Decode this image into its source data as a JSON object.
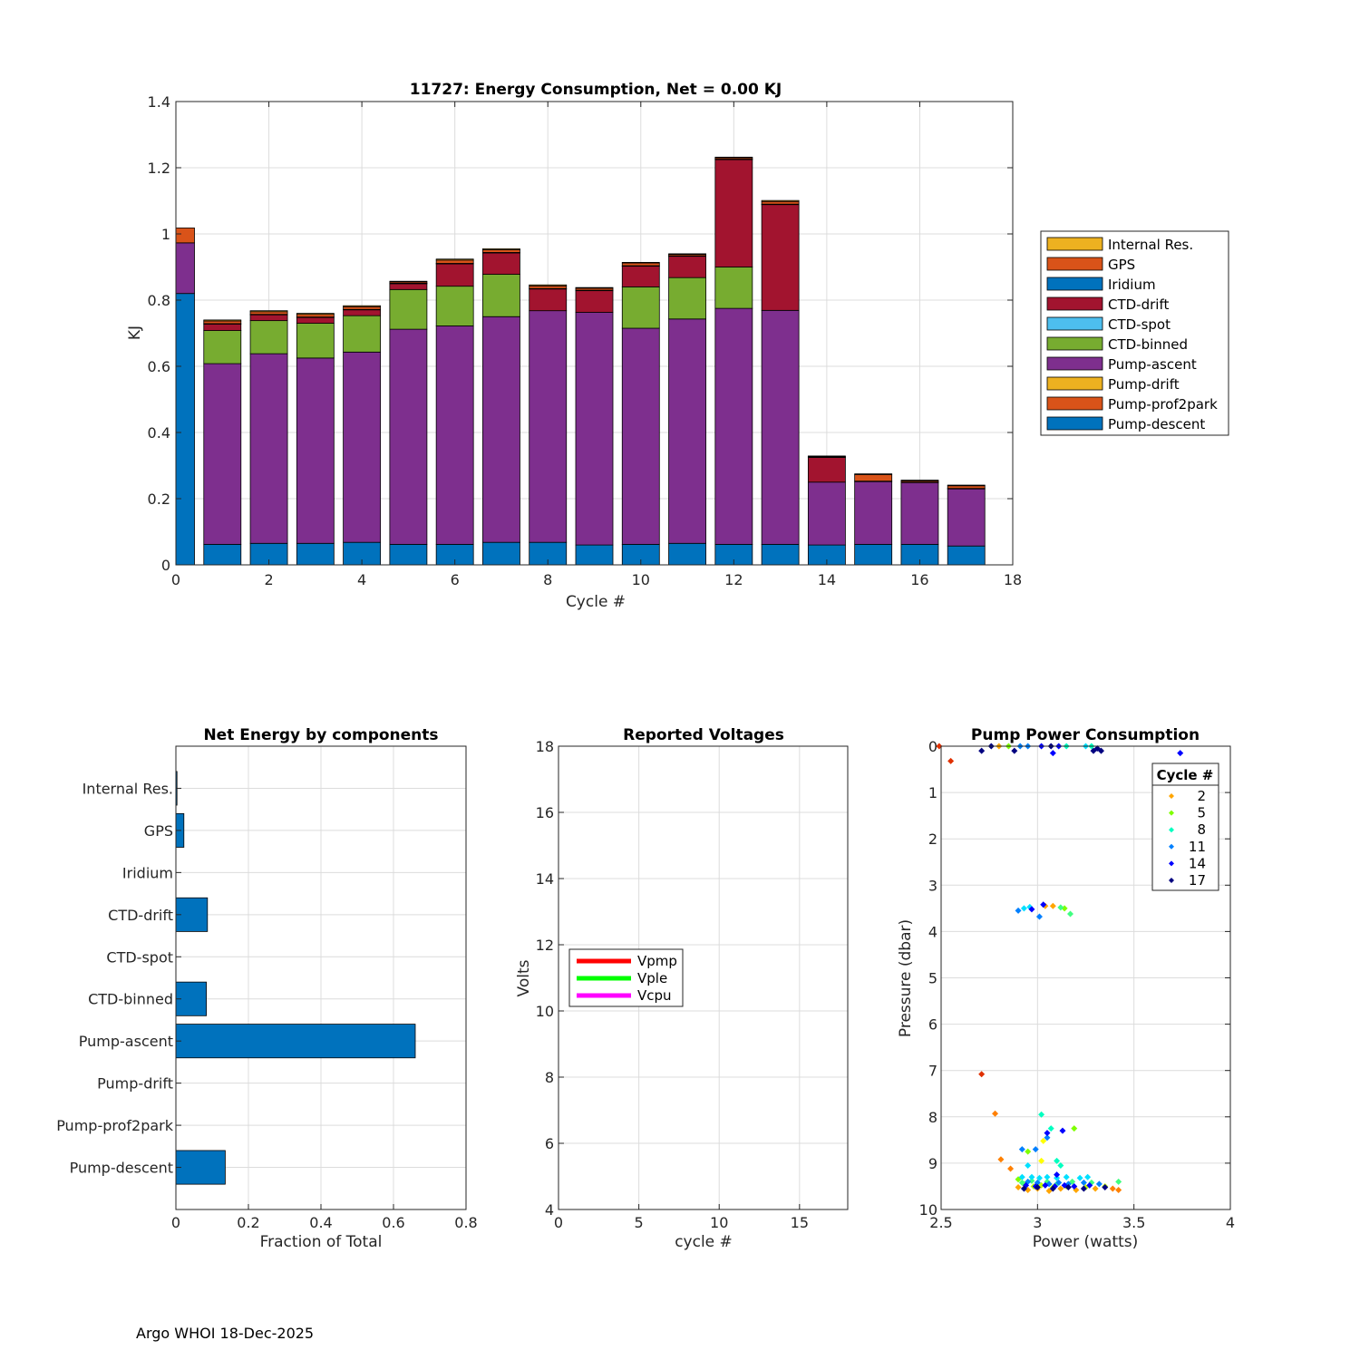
{
  "footer": "Argo WHOI 18-Dec-2025",
  "chart_data": [
    {
      "id": "energy",
      "type": "bar",
      "stacked": true,
      "title": "11727: Energy Consumption,  Net =   0.00 KJ",
      "xlabel": "Cycle #",
      "ylabel": "KJ",
      "xlim": [
        0,
        18
      ],
      "ylim": [
        0,
        1.4
      ],
      "xticks": [
        0,
        2,
        4,
        6,
        8,
        10,
        12,
        14,
        16,
        18
      ],
      "yticks": [
        0,
        0.2,
        0.4,
        0.6,
        0.8,
        1,
        1.2,
        1.4
      ],
      "ytick_labels": [
        "0",
        "0.2",
        "0.4",
        "0.6",
        "0.8",
        "1",
        "1.2",
        "1.4"
      ],
      "grid": true,
      "legend_position": "outside-right",
      "categories": [
        0,
        1,
        2,
        3,
        4,
        5,
        6,
        7,
        8,
        9,
        10,
        11,
        12,
        13,
        14,
        15,
        16,
        17
      ],
      "series": [
        {
          "name": "Pump-descent",
          "color": "#0072BD",
          "values": [
            0.82,
            0.062,
            0.065,
            0.065,
            0.068,
            0.062,
            0.062,
            0.068,
            0.068,
            0.06,
            0.062,
            0.065,
            0.062,
            0.062,
            0.06,
            0.062,
            0.062,
            0.057
          ]
        },
        {
          "name": "Pump-prof2park",
          "color": "#D95319",
          "values": [
            0,
            0,
            0,
            0,
            0,
            0,
            0,
            0,
            0,
            0,
            0,
            0,
            0,
            0,
            0,
            0,
            0,
            0
          ]
        },
        {
          "name": "Pump-drift",
          "color": "#EDB120",
          "values": [
            0,
            0,
            0,
            0,
            0,
            0,
            0,
            0,
            0,
            0,
            0,
            0,
            0,
            0,
            0,
            0,
            0,
            0
          ]
        },
        {
          "name": "Pump-ascent",
          "color": "#7E2F8E",
          "values": [
            0.153,
            0.546,
            0.573,
            0.56,
            0.575,
            0.65,
            0.66,
            0.682,
            0.7,
            0.703,
            0.653,
            0.678,
            0.713,
            0.707,
            0.19,
            0.19,
            0.187,
            0.173
          ]
        },
        {
          "name": "CTD-binned",
          "color": "#77AC30",
          "values": [
            0,
            0.1,
            0.1,
            0.105,
            0.11,
            0.12,
            0.12,
            0.128,
            0,
            0,
            0.125,
            0.125,
            0.125,
            0,
            0,
            0,
            0,
            0
          ]
        },
        {
          "name": "CTD-spot",
          "color": "#4DBEEE",
          "values": [
            0,
            0,
            0,
            0,
            0,
            0,
            0,
            0,
            0,
            0,
            0,
            0,
            0,
            0,
            0,
            0,
            0,
            0
          ]
        },
        {
          "name": "CTD-drift",
          "color": "#A2142F",
          "values": [
            0,
            0.02,
            0.018,
            0.018,
            0.018,
            0.018,
            0.068,
            0.065,
            0.066,
            0.066,
            0.063,
            0.065,
            0.325,
            0.32,
            0.075,
            0,
            0,
            0
          ]
        },
        {
          "name": "Iridium",
          "color": "#0072BD",
          "values": [
            0,
            0.001,
            0.001,
            0.001,
            0.001,
            0.001,
            0.001,
            0.001,
            0.001,
            0.001,
            0.001,
            0.001,
            0.001,
            0.001,
            0.001,
            0.001,
            0.001,
            0.001
          ]
        },
        {
          "name": "GPS",
          "color": "#D95319",
          "values": [
            0.045,
            0.008,
            0.008,
            0.008,
            0.008,
            0.004,
            0.01,
            0.008,
            0.008,
            0.006,
            0.008,
            0.004,
            0.004,
            0.008,
            0.001,
            0.02,
            0.004,
            0.008
          ]
        },
        {
          "name": "Internal Res.",
          "color": "#EDB120",
          "values": [
            0,
            0.003,
            0.003,
            0.003,
            0.003,
            0.002,
            0.003,
            0.003,
            0.003,
            0.002,
            0.002,
            0.002,
            0.002,
            0.003,
            0.002,
            0.002,
            0.002,
            0.002
          ]
        }
      ],
      "legend": [
        "Internal Res.",
        "GPS",
        "Iridium",
        "CTD-drift",
        "CTD-spot",
        "CTD-binned",
        "Pump-ascent",
        "Pump-drift",
        "Pump-prof2park",
        "Pump-descent"
      ]
    },
    {
      "id": "components",
      "type": "bar",
      "orientation": "horizontal",
      "title": "Net Energy by components",
      "xlabel": "Fraction of Total",
      "ylabel": "",
      "xlim": [
        0,
        0.8
      ],
      "xticks": [
        0,
        0.2,
        0.4,
        0.6,
        0.8
      ],
      "xtick_labels": [
        "0",
        "0.2",
        "0.4",
        "0.6",
        "0.8"
      ],
      "grid": true,
      "color": "#0072BD",
      "categories": [
        "Internal Res.",
        "GPS",
        "Iridium",
        "CTD-drift",
        "CTD-spot",
        "CTD-binned",
        "Pump-ascent",
        "Pump-drift",
        "Pump-prof2park",
        "Pump-descent"
      ],
      "values": [
        0.003,
        0.022,
        0,
        0.087,
        0,
        0.084,
        0.66,
        0,
        0,
        0.136
      ]
    },
    {
      "id": "voltages",
      "type": "line",
      "title": "Reported Voltages",
      "xlabel": "cycle #",
      "ylabel": "Volts",
      "xlim": [
        0,
        18
      ],
      "ylim": [
        4,
        18
      ],
      "xticks": [
        0,
        5,
        10,
        15
      ],
      "yticks": [
        4,
        6,
        8,
        10,
        12,
        14,
        16,
        18
      ],
      "grid": true,
      "legend_position": "middle-left",
      "series": [
        {
          "name": "Vpmp",
          "color": "#FF0000",
          "values": []
        },
        {
          "name": "Vple",
          "color": "#00FF00",
          "values": []
        },
        {
          "name": "Vcpu",
          "color": "#FF00FF",
          "values": []
        }
      ]
    },
    {
      "id": "pump",
      "type": "scatter",
      "title": "Pump Power Consumption",
      "xlabel": "Power (watts)",
      "ylabel": "Pressure (dbar)",
      "xlim": [
        2.5,
        4
      ],
      "ylim": [
        0,
        10
      ],
      "y_reversed": true,
      "xticks": [
        2.5,
        3,
        3.5,
        4
      ],
      "yticks": [
        0,
        1,
        2,
        3,
        4,
        5,
        6,
        7,
        8,
        9,
        10
      ],
      "grid": true,
      "legend_title": "Cycle #",
      "legend_position": "top-right",
      "legend": [
        {
          "label": "2",
          "color": "#FFA500"
        },
        {
          "label": "5",
          "color": "#7FFF00"
        },
        {
          "label": "8",
          "color": "#00FFC0"
        },
        {
          "label": "11",
          "color": "#0080FF"
        },
        {
          "label": "14",
          "color": "#0000FF"
        },
        {
          "label": "17",
          "color": "#000080"
        }
      ],
      "points": [
        {
          "x": 2.49,
          "y": 0.0,
          "color": "#E03000"
        },
        {
          "x": 2.55,
          "y": 0.32,
          "color": "#E03000"
        },
        {
          "x": 2.71,
          "y": 7.08,
          "color": "#E03000"
        },
        {
          "x": 2.78,
          "y": 7.93,
          "color": "#FF8000"
        },
        {
          "x": 2.81,
          "y": 8.92,
          "color": "#FF8000"
        },
        {
          "x": 2.86,
          "y": 9.12,
          "color": "#FF8000"
        },
        {
          "x": 2.9,
          "y": 9.52,
          "color": "#FFA500"
        },
        {
          "x": 2.95,
          "y": 9.58,
          "color": "#FFA500"
        },
        {
          "x": 3.0,
          "y": 9.55,
          "color": "#FFA500"
        },
        {
          "x": 3.06,
          "y": 9.6,
          "color": "#FFA500"
        },
        {
          "x": 3.12,
          "y": 9.55,
          "color": "#FFA500"
        },
        {
          "x": 3.2,
          "y": 9.58,
          "color": "#FFA500"
        },
        {
          "x": 3.3,
          "y": 9.55,
          "color": "#FFA500"
        },
        {
          "x": 3.39,
          "y": 9.55,
          "color": "#FF8000"
        },
        {
          "x": 3.42,
          "y": 9.58,
          "color": "#FF8000"
        },
        {
          "x": 2.93,
          "y": 9.45,
          "color": "#C0FF00"
        },
        {
          "x": 2.98,
          "y": 9.5,
          "color": "#C0FF00"
        },
        {
          "x": 3.02,
          "y": 9.48,
          "color": "#C0FF00"
        },
        {
          "x": 3.08,
          "y": 9.52,
          "color": "#C0FF00"
        },
        {
          "x": 3.15,
          "y": 9.5,
          "color": "#C0FF00"
        },
        {
          "x": 3.25,
          "y": 9.52,
          "color": "#C0FF00"
        },
        {
          "x": 3.35,
          "y": 9.5,
          "color": "#C0FF00"
        },
        {
          "x": 3.02,
          "y": 8.95,
          "color": "#FFFF00"
        },
        {
          "x": 3.03,
          "y": 8.52,
          "color": "#FFFF00"
        },
        {
          "x": 3.04,
          "y": 3.45,
          "color": "#FFA500"
        },
        {
          "x": 3.08,
          "y": 3.45,
          "color": "#FFA500"
        },
        {
          "x": 3.19,
          "y": 8.25,
          "color": "#7FFF00"
        },
        {
          "x": 2.95,
          "y": 8.75,
          "color": "#7FFF00"
        },
        {
          "x": 2.9,
          "y": 9.35,
          "color": "#7FFF00"
        },
        {
          "x": 2.92,
          "y": 9.42,
          "color": "#40FF80"
        },
        {
          "x": 2.97,
          "y": 9.38,
          "color": "#40FF80"
        },
        {
          "x": 3.05,
          "y": 9.4,
          "color": "#40FF80"
        },
        {
          "x": 3.1,
          "y": 9.45,
          "color": "#40FF80"
        },
        {
          "x": 3.18,
          "y": 9.4,
          "color": "#40FF80"
        },
        {
          "x": 3.28,
          "y": 9.42,
          "color": "#40FF80"
        },
        {
          "x": 3.42,
          "y": 9.4,
          "color": "#40FF80"
        },
        {
          "x": 3.14,
          "y": 3.5,
          "color": "#7FFF00"
        },
        {
          "x": 3.17,
          "y": 3.62,
          "color": "#40FF80"
        },
        {
          "x": 3.12,
          "y": 3.48,
          "color": "#40FF80"
        },
        {
          "x": 2.85,
          "y": 0.0,
          "color": "#7FFF00"
        },
        {
          "x": 2.8,
          "y": 0.0,
          "color": "#FFA500"
        },
        {
          "x": 3.02,
          "y": 7.95,
          "color": "#00FFC0"
        },
        {
          "x": 3.07,
          "y": 8.25,
          "color": "#00FFC0"
        },
        {
          "x": 3.1,
          "y": 8.95,
          "color": "#00FFC0"
        },
        {
          "x": 3.12,
          "y": 9.05,
          "color": "#00FFC0"
        },
        {
          "x": 2.92,
          "y": 9.3,
          "color": "#00E0FF"
        },
        {
          "x": 2.97,
          "y": 9.3,
          "color": "#00E0FF"
        },
        {
          "x": 3.01,
          "y": 9.32,
          "color": "#00E0FF"
        },
        {
          "x": 3.05,
          "y": 9.3,
          "color": "#00E0FF"
        },
        {
          "x": 3.1,
          "y": 9.32,
          "color": "#00E0FF"
        },
        {
          "x": 3.15,
          "y": 9.3,
          "color": "#00E0FF"
        },
        {
          "x": 3.22,
          "y": 9.32,
          "color": "#00E0FF"
        },
        {
          "x": 3.26,
          "y": 9.3,
          "color": "#00E0FF"
        },
        {
          "x": 2.95,
          "y": 9.05,
          "color": "#00E0FF"
        },
        {
          "x": 2.93,
          "y": 3.5,
          "color": "#00E0FF"
        },
        {
          "x": 2.96,
          "y": 3.47,
          "color": "#00E0FF"
        },
        {
          "x": 3.28,
          "y": 0.0,
          "color": "#00FFC0"
        },
        {
          "x": 3.15,
          "y": 0.0,
          "color": "#00FFC0"
        },
        {
          "x": 3.25,
          "y": 0.0,
          "color": "#00E0FF"
        },
        {
          "x": 2.99,
          "y": 8.7,
          "color": "#0080FF"
        },
        {
          "x": 2.92,
          "y": 8.7,
          "color": "#0080FF"
        },
        {
          "x": 3.05,
          "y": 8.45,
          "color": "#0080FF"
        },
        {
          "x": 2.95,
          "y": 9.4,
          "color": "#0080FF"
        },
        {
          "x": 3.0,
          "y": 9.42,
          "color": "#0080FF"
        },
        {
          "x": 3.06,
          "y": 9.45,
          "color": "#0080FF"
        },
        {
          "x": 3.11,
          "y": 9.42,
          "color": "#0080FF"
        },
        {
          "x": 3.16,
          "y": 9.45,
          "color": "#0080FF"
        },
        {
          "x": 3.24,
          "y": 9.42,
          "color": "#0080FF"
        },
        {
          "x": 3.32,
          "y": 9.45,
          "color": "#0080FF"
        },
        {
          "x": 2.9,
          "y": 3.55,
          "color": "#0080FF"
        },
        {
          "x": 3.01,
          "y": 3.68,
          "color": "#0080FF"
        },
        {
          "x": 2.95,
          "y": 0.0,
          "color": "#0080FF"
        },
        {
          "x": 2.91,
          "y": 0.0,
          "color": "#0080FF"
        },
        {
          "x": 3.05,
          "y": 8.35,
          "color": "#0000FF"
        },
        {
          "x": 3.13,
          "y": 8.3,
          "color": "#0000FF"
        },
        {
          "x": 2.94,
          "y": 9.48,
          "color": "#0000FF"
        },
        {
          "x": 2.99,
          "y": 9.5,
          "color": "#0000FF"
        },
        {
          "x": 3.04,
          "y": 9.48,
          "color": "#0000FF"
        },
        {
          "x": 3.09,
          "y": 9.5,
          "color": "#0000FF"
        },
        {
          "x": 3.14,
          "y": 9.48,
          "color": "#0000FF"
        },
        {
          "x": 3.19,
          "y": 9.5,
          "color": "#0000FF"
        },
        {
          "x": 3.27,
          "y": 9.48,
          "color": "#0000FF"
        },
        {
          "x": 3.1,
          "y": 9.25,
          "color": "#0000FF"
        },
        {
          "x": 2.97,
          "y": 3.52,
          "color": "#0000FF"
        },
        {
          "x": 3.03,
          "y": 3.42,
          "color": "#0000FF"
        },
        {
          "x": 3.02,
          "y": 0.0,
          "color": "#0000FF"
        },
        {
          "x": 3.08,
          "y": 0.15,
          "color": "#0000FF"
        },
        {
          "x": 3.11,
          "y": 0.0,
          "color": "#0000FF"
        },
        {
          "x": 3.74,
          "y": 0.15,
          "color": "#0000FF"
        },
        {
          "x": 2.93,
          "y": 9.55,
          "color": "#000080"
        },
        {
          "x": 3.0,
          "y": 9.52,
          "color": "#000080"
        },
        {
          "x": 3.08,
          "y": 9.55,
          "color": "#000080"
        },
        {
          "x": 3.16,
          "y": 9.52,
          "color": "#000080"
        },
        {
          "x": 3.24,
          "y": 9.55,
          "color": "#000080"
        },
        {
          "x": 3.35,
          "y": 9.52,
          "color": "#000080"
        },
        {
          "x": 2.71,
          "y": 0.1,
          "color": "#000080"
        },
        {
          "x": 2.76,
          "y": 0.0,
          "color": "#000080"
        },
        {
          "x": 2.88,
          "y": 0.1,
          "color": "#000080"
        },
        {
          "x": 3.07,
          "y": 0.0,
          "color": "#000080"
        },
        {
          "x": 3.29,
          "y": 0.1,
          "color": "#000080"
        },
        {
          "x": 3.31,
          "y": 0.05,
          "color": "#000080"
        },
        {
          "x": 3.33,
          "y": 0.1,
          "color": "#000080"
        }
      ]
    }
  ]
}
